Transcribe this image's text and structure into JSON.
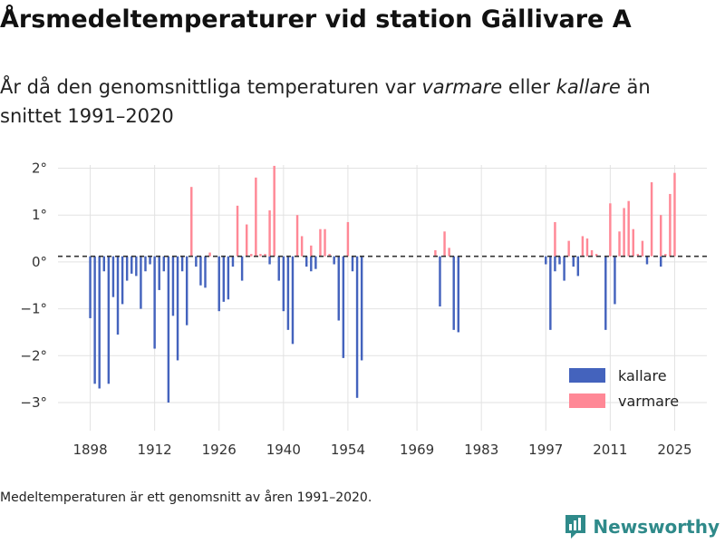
{
  "title": "Årsmedeltemperaturer vid station Gällivare A",
  "subtitle": {
    "part1": "År då den genomsnittliga temperaturen var ",
    "warm_word": "varmare",
    "part2": " eller ",
    "cold_word": "kallare",
    "part3": " än snittet 1991–2020"
  },
  "note": "Medeltemperaturen är ett genomsnitt av åren 1991–2020.",
  "brand": "Newsworthy",
  "colors": {
    "cold": "#4463bd",
    "warm": "#ff8896",
    "grid": "#e2e2e2",
    "baseline": "#333333",
    "brand": "#2f8a8a"
  },
  "chart_data": {
    "type": "bar",
    "title": "Årsmedeltemperaturer vid station Gällivare A",
    "xlabel": "",
    "ylabel": "",
    "xlim": [
      1891,
      2032
    ],
    "ylim": [
      -3.6,
      2.3
    ],
    "reference_line": 0.12,
    "x_ticks": [
      1898,
      1912,
      1926,
      1940,
      1954,
      1969,
      1983,
      1997,
      2011,
      2025
    ],
    "y_ticks": [
      -3,
      -2,
      -1,
      0,
      1,
      2
    ],
    "y_tick_labels": [
      "−3°",
      "−2°",
      "−1°",
      "0°",
      "1°",
      "2°"
    ],
    "legend": [
      {
        "key": "cold",
        "label": "kallare"
      },
      {
        "key": "warm",
        "label": "varmare"
      }
    ],
    "series": [
      {
        "name": "kallare",
        "color_key": "cold",
        "points": [
          [
            1898,
            -1.2
          ],
          [
            1899,
            -2.6
          ],
          [
            1900,
            -2.7
          ],
          [
            1901,
            -0.2
          ],
          [
            1902,
            -2.6
          ],
          [
            1903,
            -0.75
          ],
          [
            1904,
            -1.55
          ],
          [
            1905,
            -0.9
          ],
          [
            1906,
            -0.4
          ],
          [
            1907,
            -0.25
          ],
          [
            1908,
            -0.3
          ],
          [
            1909,
            -1.0
          ],
          [
            1910,
            -0.2
          ],
          [
            1911,
            -0.05
          ],
          [
            1912,
            -1.85
          ],
          [
            1913,
            -0.6
          ],
          [
            1914,
            -0.2
          ],
          [
            1915,
            -3.0
          ],
          [
            1916,
            -1.15
          ],
          [
            1917,
            -2.1
          ],
          [
            1918,
            -0.2
          ],
          [
            1919,
            -1.35
          ],
          [
            1921,
            -0.1
          ],
          [
            1922,
            -0.5
          ],
          [
            1923,
            -0.55
          ],
          [
            1926,
            -1.05
          ],
          [
            1927,
            -0.85
          ],
          [
            1928,
            -0.8
          ],
          [
            1929,
            -0.1
          ],
          [
            1931,
            -0.4
          ],
          [
            1937,
            -0.05
          ],
          [
            1939,
            -0.4
          ],
          [
            1940,
            -1.05
          ],
          [
            1941,
            -1.45
          ],
          [
            1942,
            -1.75
          ],
          [
            1945,
            -0.1
          ],
          [
            1946,
            -0.2
          ],
          [
            1947,
            -0.15
          ],
          [
            1951,
            -0.05
          ],
          [
            1952,
            -1.25
          ],
          [
            1953,
            -2.05
          ],
          [
            1955,
            -0.2
          ],
          [
            1956,
            -2.9
          ],
          [
            1957,
            -2.1
          ],
          [
            1974,
            -0.95
          ],
          [
            1977,
            -1.45
          ],
          [
            1978,
            -1.5
          ],
          [
            1997,
            -0.05
          ],
          [
            1998,
            -1.45
          ],
          [
            1999,
            -0.2
          ],
          [
            2000,
            -0.05
          ],
          [
            2001,
            -0.4
          ],
          [
            2003,
            -0.1
          ],
          [
            2004,
            -0.3
          ],
          [
            2010,
            -1.45
          ],
          [
            2012,
            -0.9
          ],
          [
            2019,
            -0.05
          ],
          [
            2022,
            -0.1
          ]
        ]
      },
      {
        "name": "varmare",
        "color_key": "warm",
        "points": [
          [
            1920,
            1.6
          ],
          [
            1924,
            0.2
          ],
          [
            1930,
            1.2
          ],
          [
            1932,
            0.8
          ],
          [
            1933,
            0.15
          ],
          [
            1934,
            1.8
          ],
          [
            1935,
            0.05
          ],
          [
            1936,
            0.1
          ],
          [
            1937,
            1.1
          ],
          [
            1938,
            2.05
          ],
          [
            1943,
            1.0
          ],
          [
            1944,
            0.55
          ],
          [
            1946,
            0.35
          ],
          [
            1948,
            0.7
          ],
          [
            1949,
            0.7
          ],
          [
            1950,
            0.05
          ],
          [
            1954,
            0.85
          ],
          [
            1973,
            0.25
          ],
          [
            1975,
            0.65
          ],
          [
            1976,
            0.3
          ],
          [
            1999,
            0.85
          ],
          [
            2002,
            0.45
          ],
          [
            2005,
            0.55
          ],
          [
            2006,
            0.5
          ],
          [
            2007,
            0.25
          ],
          [
            2008,
            0.1
          ],
          [
            2011,
            1.25
          ],
          [
            2013,
            0.65
          ],
          [
            2014,
            1.15
          ],
          [
            2015,
            1.3
          ],
          [
            2016,
            0.7
          ],
          [
            2017,
            0.05
          ],
          [
            2018,
            0.45
          ],
          [
            2020,
            1.7
          ],
          [
            2022,
            1.0
          ],
          [
            2023,
            0.15
          ],
          [
            2024,
            1.45
          ],
          [
            2025,
            1.9
          ]
        ]
      }
    ]
  }
}
